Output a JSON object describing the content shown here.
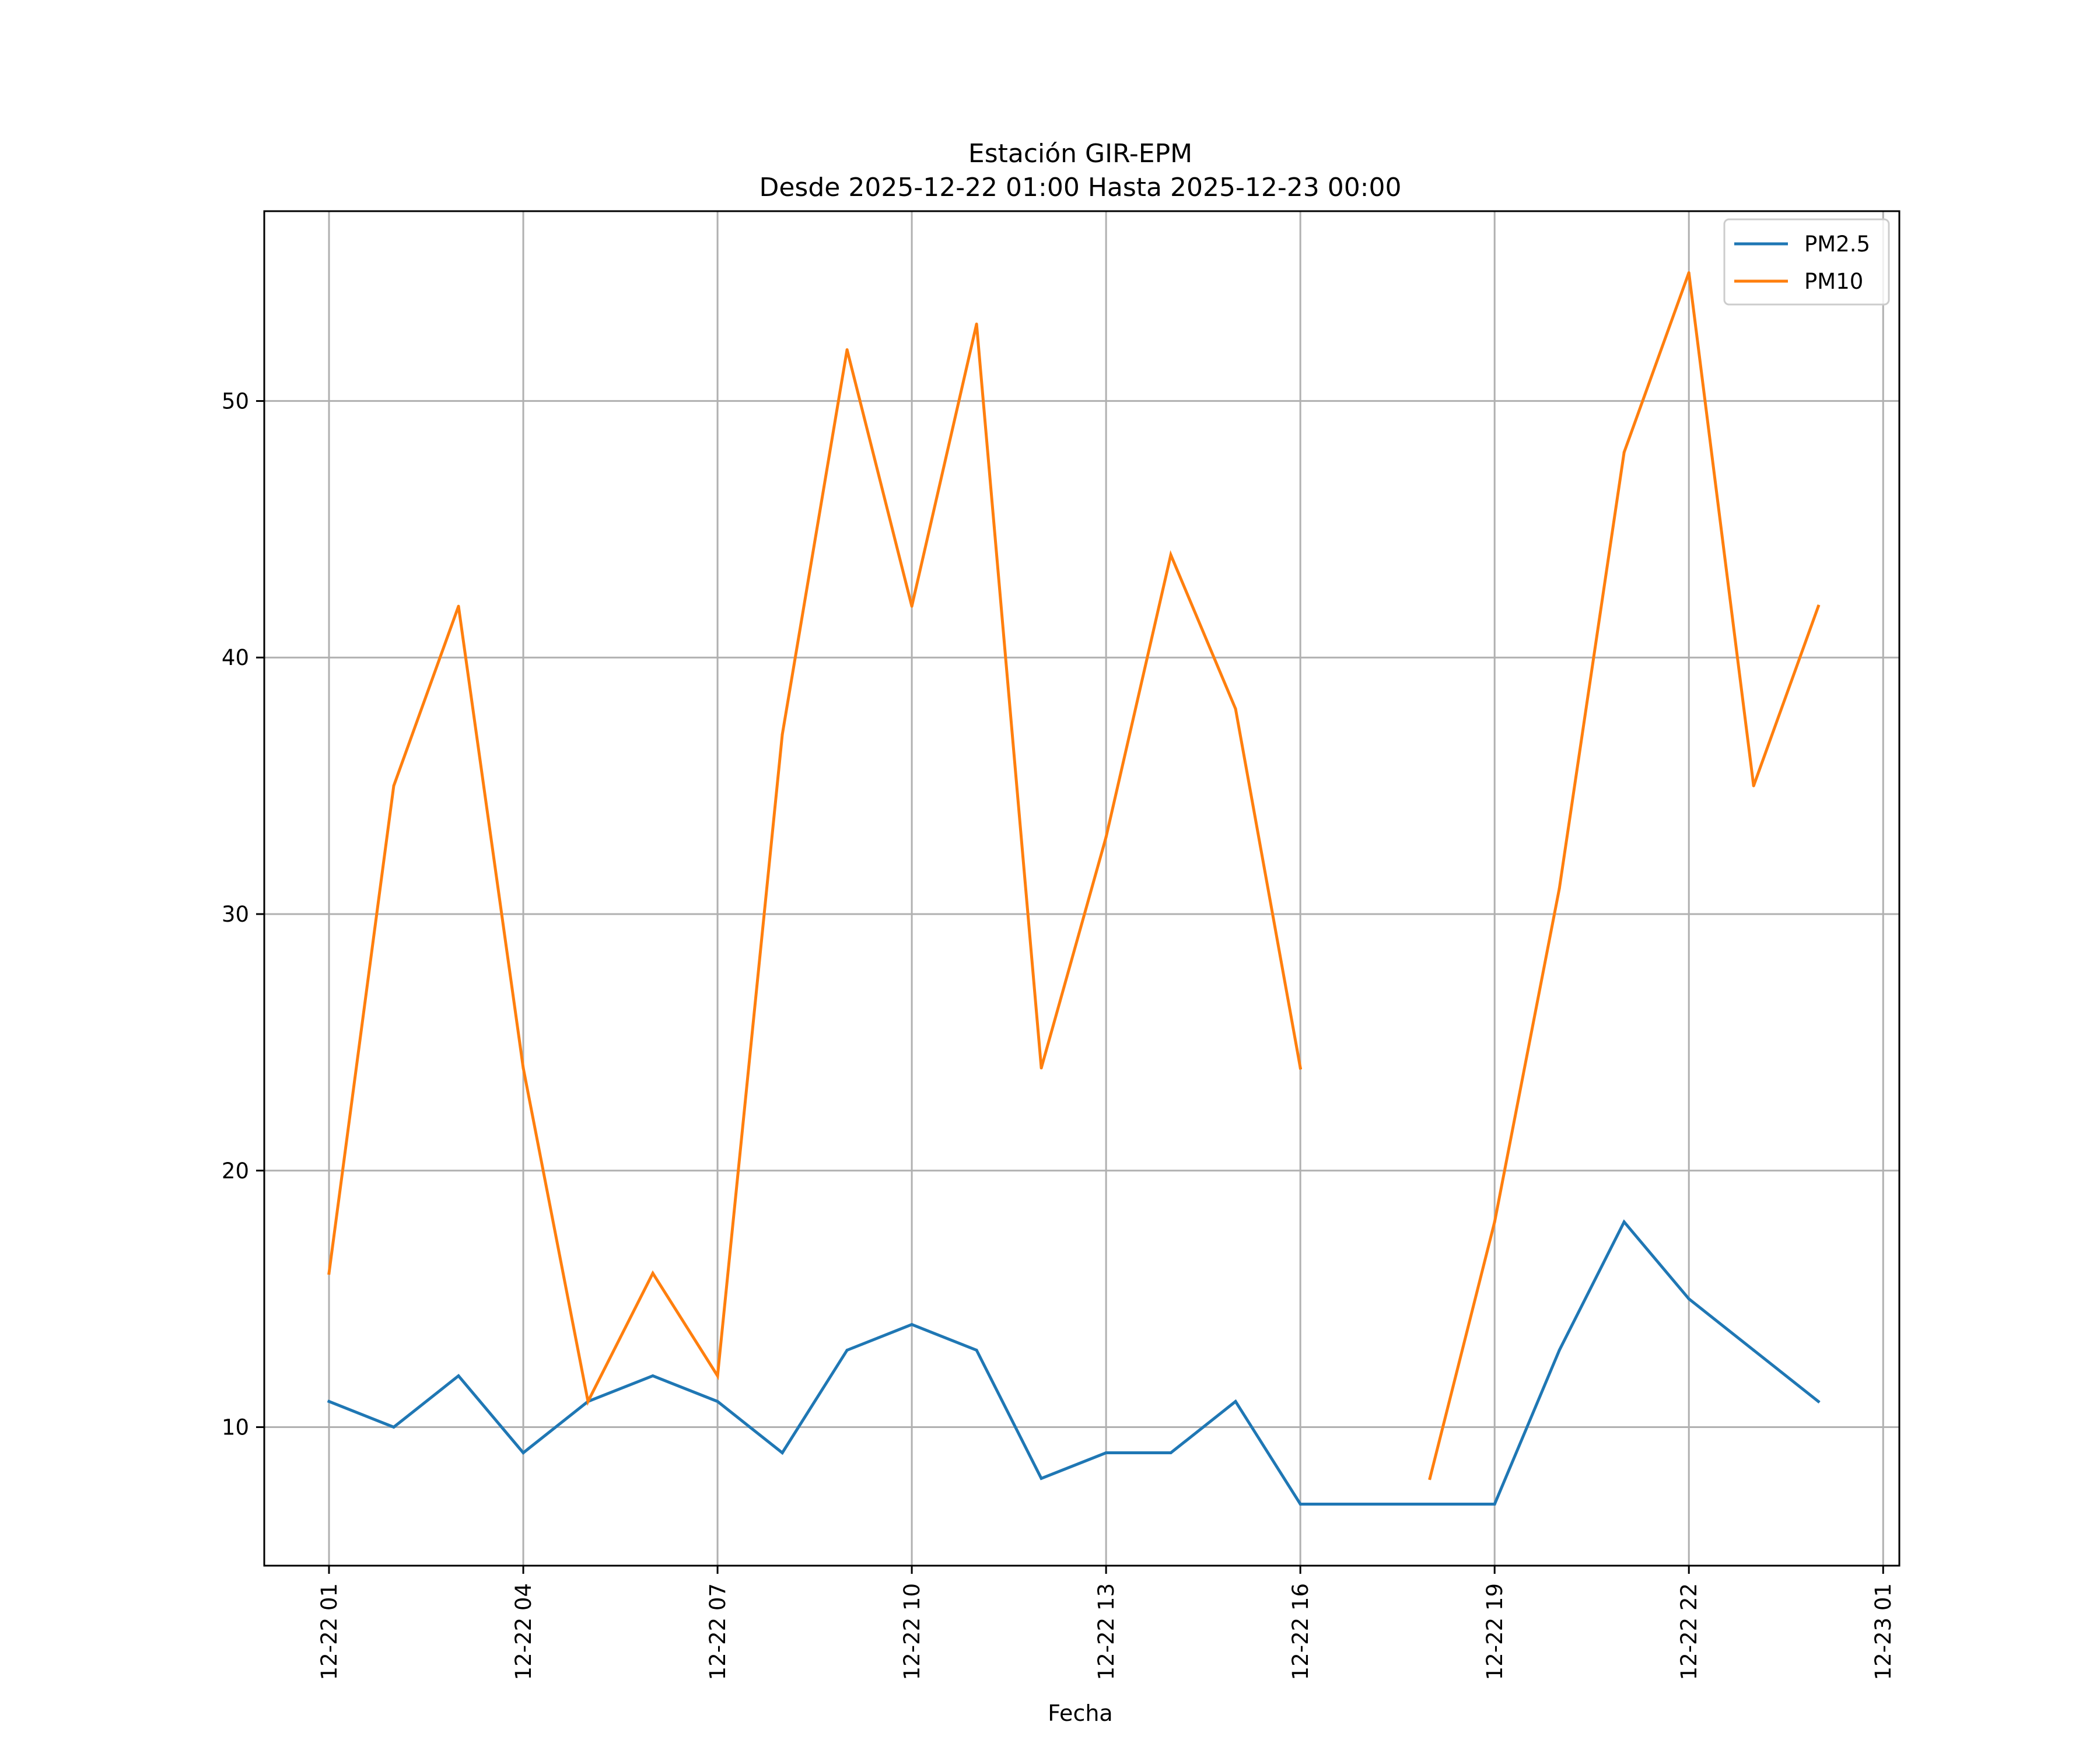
{
  "chart_data": {
    "type": "line",
    "title": "Estación GIR-EPM",
    "subtitle": "Desde 2025-12-22 01:00 Hasta 2025-12-23 00:00",
    "xlabel": "Fecha",
    "ylabel": "",
    "x": [
      "2025-12-22 01:00",
      "2025-12-22 02:00",
      "2025-12-22 03:00",
      "2025-12-22 04:00",
      "2025-12-22 05:00",
      "2025-12-22 06:00",
      "2025-12-22 07:00",
      "2025-12-22 08:00",
      "2025-12-22 09:00",
      "2025-12-22 10:00",
      "2025-12-22 11:00",
      "2025-12-22 12:00",
      "2025-12-22 13:00",
      "2025-12-22 14:00",
      "2025-12-22 15:00",
      "2025-12-22 16:00",
      "2025-12-22 17:00",
      "2025-12-22 18:00",
      "2025-12-22 19:00",
      "2025-12-22 20:00",
      "2025-12-22 21:00",
      "2025-12-22 22:00",
      "2025-12-22 23:00",
      "2025-12-23 00:00"
    ],
    "series": [
      {
        "name": "PM2.5",
        "color": "#1f77b4",
        "values": [
          11,
          10,
          12,
          9,
          11,
          12,
          11,
          9,
          13,
          14,
          13,
          8,
          9,
          9,
          11,
          7,
          7,
          7,
          7,
          13,
          18,
          15,
          13,
          11
        ]
      },
      {
        "name": "PM10",
        "color": "#ff7f0e",
        "values": [
          16,
          35,
          42,
          24,
          11,
          16,
          12,
          37,
          52,
          42,
          53,
          24,
          33,
          44,
          38,
          24,
          null,
          8,
          18,
          31,
          48,
          55,
          35,
          42
        ]
      }
    ],
    "xticks": [
      "12-22 01",
      "12-22 04",
      "12-22 07",
      "12-22 10",
      "12-22 13",
      "12-22 16",
      "12-22 19",
      "12-22 22",
      "12-23 01"
    ],
    "xlim": [
      "2025-12-22 00:00",
      "2025-12-23 01:15"
    ],
    "yticks": [
      10,
      20,
      30,
      40,
      50
    ],
    "ylim": [
      4.6,
      57.4
    ],
    "grid": true,
    "legend_position": "top-right"
  }
}
